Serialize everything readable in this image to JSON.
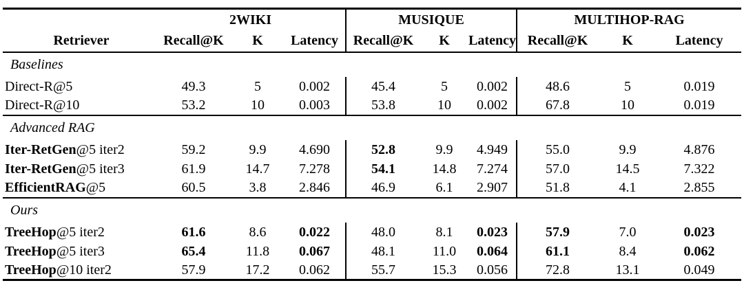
{
  "header": {
    "retriever": "Retriever",
    "groups": [
      "2WIKI",
      "MUSIQUE",
      "MULTIHOP-RAG"
    ],
    "metrics": [
      "Recall@K",
      "K",
      "Latency"
    ]
  },
  "sections": [
    {
      "label": "Baselines",
      "rows": [
        {
          "name": [
            [
              "Direct-R@5",
              false
            ]
          ],
          "values": [
            "49.3",
            "5",
            "0.002",
            "45.4",
            "5",
            "0.002",
            "48.6",
            "5",
            "0.019"
          ],
          "bold": []
        },
        {
          "name": [
            [
              "Direct-R@10",
              false
            ]
          ],
          "values": [
            "53.2",
            "10",
            "0.003",
            "53.8",
            "10",
            "0.002",
            "67.8",
            "10",
            "0.019"
          ],
          "bold": []
        }
      ]
    },
    {
      "label": "Advanced RAG",
      "rows": [
        {
          "name": [
            [
              "Iter-RetGen",
              true
            ],
            [
              "@5 iter2",
              false
            ]
          ],
          "values": [
            "59.2",
            "9.9",
            "4.690",
            "52.8",
            "9.9",
            "4.949",
            "55.0",
            "9.9",
            "4.876"
          ],
          "bold": [
            3
          ]
        },
        {
          "name": [
            [
              "Iter-RetGen",
              true
            ],
            [
              "@5 iter3",
              false
            ]
          ],
          "values": [
            "61.9",
            "14.7",
            "7.278",
            "54.1",
            "14.8",
            "7.274",
            "57.0",
            "14.5",
            "7.322"
          ],
          "bold": [
            3
          ]
        },
        {
          "name": [
            [
              "EfficientRAG",
              true
            ],
            [
              "@5",
              false
            ]
          ],
          "values": [
            "60.5",
            "3.8",
            "2.846",
            "46.9",
            "6.1",
            "2.907",
            "51.8",
            "4.1",
            "2.855"
          ],
          "bold": []
        }
      ]
    },
    {
      "label": "Ours",
      "rows": [
        {
          "name": [
            [
              "TreeHop",
              true
            ],
            [
              "@5 iter2",
              false
            ]
          ],
          "values": [
            "61.6",
            "8.6",
            "0.022",
            "48.0",
            "8.1",
            "0.023",
            "57.9",
            "7.0",
            "0.023"
          ],
          "bold": [
            0,
            2,
            5,
            6,
            8
          ]
        },
        {
          "name": [
            [
              "TreeHop",
              true
            ],
            [
              "@5 iter3",
              false
            ]
          ],
          "values": [
            "65.4",
            "11.8",
            "0.067",
            "48.1",
            "11.0",
            "0.064",
            "61.1",
            "8.4",
            "0.062"
          ],
          "bold": [
            0,
            2,
            5,
            6,
            8
          ]
        },
        {
          "name": [
            [
              "TreeHop",
              true
            ],
            [
              "@10 iter2",
              false
            ]
          ],
          "values": [
            "57.9",
            "17.2",
            "0.062",
            "55.7",
            "15.3",
            "0.056",
            "72.8",
            "13.1",
            "0.049"
          ],
          "bold": []
        }
      ]
    }
  ]
}
